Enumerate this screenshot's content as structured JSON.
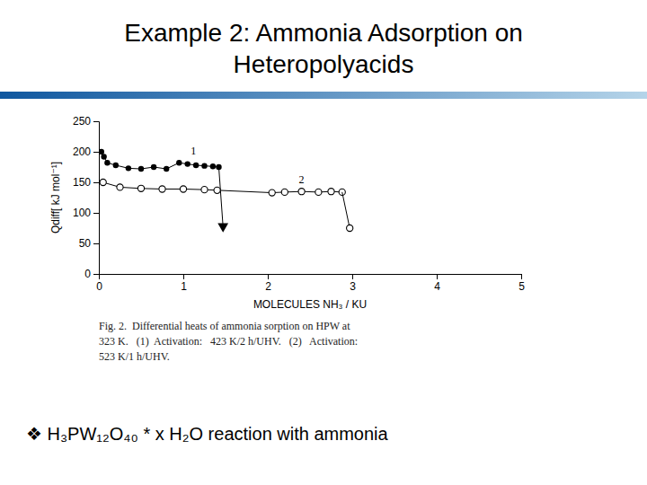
{
  "chart_data": {
    "type": "line",
    "title": "Example 2: Ammonia Adsorption on\nHeteropolyacids",
    "x_label": "MOLECULES NH₃ / KU",
    "y_label": "Qdiff[ kJ mol⁻¹]",
    "xlim": [
      0,
      5
    ],
    "ylim": [
      0,
      250
    ],
    "xticks": [
      0,
      1,
      2,
      3,
      4,
      5
    ],
    "yticks": [
      0,
      50,
      100,
      150,
      200,
      250
    ],
    "grid": false,
    "series": [
      {
        "x": [
          0.03,
          0.06,
          0.1,
          0.2,
          0.35,
          0.5,
          0.65,
          0.8,
          0.95,
          1.05,
          1.15,
          1.25,
          1.35,
          1.42
        ],
        "values": [
          200,
          192,
          182,
          178,
          173,
          172,
          175,
          172,
          182,
          180,
          178,
          177,
          176,
          175
        ],
        "color": "#000000",
        "marker": "circle",
        "line_style": "solid"
      },
      {
        "x": [
          1.42,
          1.47
        ],
        "values": [
          175,
          78
        ],
        "color": "#000000",
        "marker": "none",
        "line_style": "solid"
      },
      {
        "x": [
          1.47
        ],
        "values": [
          78
        ],
        "color": "#000000",
        "marker": "triangle-down",
        "line_style": "none"
      },
      {
        "x": [
          0.05,
          0.25,
          0.5,
          0.75,
          1.0,
          1.25,
          1.4,
          2.05,
          2.2,
          2.4,
          2.6,
          2.75,
          2.88
        ],
        "values": [
          150,
          142,
          140,
          139,
          139,
          138,
          137,
          133,
          134,
          135,
          134,
          135,
          134
        ],
        "color": "#000000",
        "marker": "open-circle",
        "line_style": "solid"
      },
      {
        "x": [
          2.88,
          2.97
        ],
        "values": [
          134,
          75
        ],
        "color": "#000000",
        "marker": "none",
        "line_style": "solid"
      },
      {
        "x": [
          2.97
        ],
        "values": [
          75
        ],
        "color": "#000000",
        "marker": "open-circle",
        "line_style": "none"
      }
    ],
    "annotations": [
      {
        "text": "1",
        "x": 1.12,
        "y": 196
      },
      {
        "text": "2",
        "x": 2.4,
        "y": 148
      }
    ],
    "caption": "Fig. 2.  Differential heats of ammonia sorption on HPW at\n323 K.   (1)  Activation:   423 K/2 h/UHV.   (2)   Activation:\n523 K/1 h/UHV.",
    "footer": "❖ H₃PW₁₂O₄₀ * x H₂O reaction with ammonia"
  }
}
